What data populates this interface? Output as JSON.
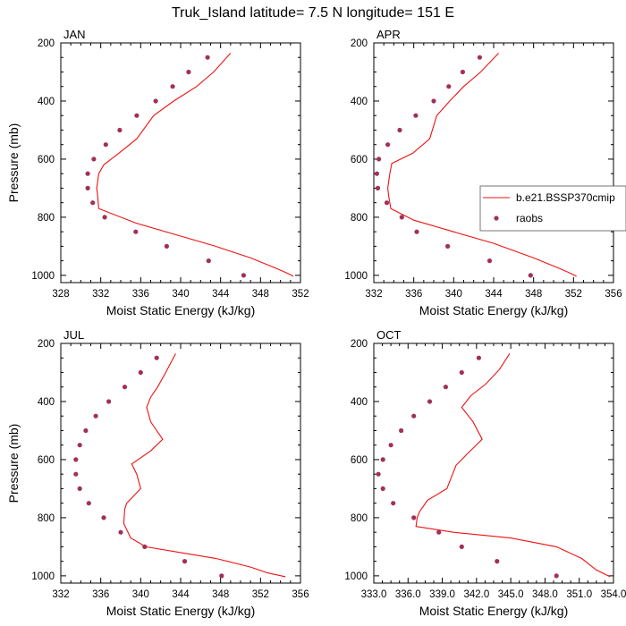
{
  "figure_title": "Truk_Island  latitude= 7.5 N longitude= 151 E",
  "legend": {
    "model_label": "b.e21.BSSP370cmip",
    "obs_label": "raobs",
    "model_color": "#ee1111",
    "obs_color": "#a0305a"
  },
  "chart_data": [
    {
      "type": "line",
      "title": "JAN",
      "xlabel": "Moist Static Energy (kJ/kg)",
      "ylabel": "Pressure (mb)",
      "xlim": [
        328,
        352
      ],
      "ylim": [
        200,
        1025
      ],
      "y_inverted": true,
      "xticks": [
        328,
        332,
        336,
        340,
        344,
        348,
        352
      ],
      "xtick_labels": [
        "328",
        "332",
        "336",
        "340",
        "344",
        "348",
        "352"
      ],
      "yticks": [
        200,
        400,
        600,
        800,
        1000
      ],
      "ytick_labels": [
        "200",
        "400",
        "600",
        "800",
        "1000"
      ],
      "series": [
        {
          "name": "b.e21.BSSP370cmip",
          "kind": "line",
          "x": [
            345.0,
            343.3,
            341.6,
            339.3,
            337.3,
            335.6,
            333.8,
            332.3,
            331.8,
            331.6,
            331.7,
            331.8,
            335.5,
            339.5,
            343.5,
            347.0,
            349.5,
            350.5,
            351.3
          ],
          "y": [
            235,
            300,
            350,
            400,
            450,
            530,
            580,
            620,
            650,
            700,
            730,
            770,
            820,
            860,
            900,
            940,
            975,
            990,
            1003
          ]
        },
        {
          "name": "raobs",
          "kind": "scatter",
          "x": [
            342.7,
            340.8,
            339.2,
            337.5,
            335.6,
            333.9,
            332.5,
            331.3,
            330.7,
            330.7,
            331.2,
            332.4,
            335.5,
            338.6,
            342.8,
            346.3
          ],
          "y": [
            250,
            300,
            350,
            400,
            450,
            500,
            550,
            600,
            650,
            700,
            750,
            800,
            850,
            900,
            950,
            1000
          ]
        }
      ]
    },
    {
      "type": "line",
      "title": "APR",
      "xlabel": "Moist Static Energy (kJ/kg)",
      "ylabel": "",
      "xlim": [
        332,
        356
      ],
      "ylim": [
        200,
        1025
      ],
      "y_inverted": true,
      "xticks": [
        332,
        336,
        340,
        344,
        348,
        352,
        356
      ],
      "xtick_labels": [
        "332",
        "336",
        "340",
        "344",
        "348",
        "352",
        "356"
      ],
      "yticks": [
        200,
        400,
        600,
        800,
        1000
      ],
      "ytick_labels": [
        "200",
        "400",
        "600",
        "800",
        "1000"
      ],
      "series": [
        {
          "name": "b.e21.BSSP370cmip",
          "kind": "line",
          "x": [
            344.5,
            342.7,
            341.0,
            339.6,
            338.3,
            337.6,
            335.9,
            333.8,
            333.6,
            333.4,
            333.5,
            333.7,
            336.0,
            340.0,
            344.0,
            348.0,
            350.5,
            351.5,
            352.3
          ],
          "y": [
            235,
            300,
            350,
            400,
            450,
            530,
            580,
            615,
            650,
            700,
            730,
            770,
            810,
            850,
            890,
            940,
            975,
            990,
            1003
          ]
        },
        {
          "name": "raobs",
          "kind": "scatter",
          "x": [
            342.6,
            340.9,
            339.5,
            338.0,
            336.2,
            334.6,
            333.4,
            332.5,
            332.3,
            332.4,
            333.3,
            334.8,
            336.3,
            339.4,
            343.6,
            347.7
          ],
          "y": [
            250,
            300,
            350,
            400,
            450,
            500,
            550,
            600,
            650,
            700,
            750,
            800,
            850,
            900,
            950,
            1000
          ]
        }
      ]
    },
    {
      "type": "line",
      "title": "JUL",
      "xlabel": "Moist Static Energy (kJ/kg)",
      "ylabel": "Pressure (mb)",
      "xlim": [
        332,
        356
      ],
      "ylim": [
        200,
        1025
      ],
      "y_inverted": true,
      "xticks": [
        332,
        336,
        340,
        344,
        348,
        352,
        356
      ],
      "xtick_labels": [
        "332",
        "336",
        "340",
        "344",
        "348",
        "352",
        "356"
      ],
      "yticks": [
        200,
        400,
        600,
        800,
        1000
      ],
      "ytick_labels": [
        "200",
        "400",
        "600",
        "800",
        "1000"
      ],
      "series": [
        {
          "name": "b.e21.BSSP370cmip",
          "kind": "line",
          "x": [
            343.5,
            342.5,
            341.7,
            341.0,
            340.6,
            341.0,
            342.2,
            341.0,
            339.1,
            339.6,
            340.0,
            338.6,
            338.4,
            338.3,
            339.0,
            340.5,
            344.0,
            347.5,
            351.0,
            352.7,
            354.5
          ],
          "y": [
            235,
            300,
            350,
            385,
            420,
            470,
            530,
            570,
            615,
            650,
            700,
            750,
            770,
            820,
            870,
            900,
            920,
            940,
            970,
            990,
            1003
          ]
        },
        {
          "name": "raobs",
          "kind": "scatter",
          "x": [
            341.6,
            340.0,
            338.4,
            336.8,
            335.5,
            334.5,
            333.9,
            333.5,
            333.5,
            333.9,
            334.8,
            336.3,
            338.0,
            340.4,
            344.4,
            348.1
          ],
          "y": [
            250,
            300,
            350,
            400,
            450,
            500,
            550,
            600,
            650,
            700,
            750,
            800,
            850,
            900,
            950,
            1000
          ]
        }
      ]
    },
    {
      "type": "line",
      "title": "OCT",
      "xlabel": "Moist Static Energy (kJ/kg)",
      "ylabel": "",
      "xlim": [
        333,
        354
      ],
      "ylim": [
        200,
        1025
      ],
      "y_inverted": true,
      "xticks": [
        333,
        336,
        339,
        342,
        345,
        348,
        351,
        354
      ],
      "xtick_labels": [
        "333.0",
        "336.0",
        "339.0",
        "342.0",
        "345.0",
        "348.0",
        "351.0",
        "354.0"
      ],
      "yticks": [
        200,
        400,
        600,
        800,
        1000
      ],
      "ytick_labels": [
        "200",
        "400",
        "600",
        "800",
        "1000"
      ],
      "series": [
        {
          "name": "b.e21.BSSP370cmip",
          "kind": "line",
          "x": [
            344.9,
            344.0,
            342.8,
            341.5,
            340.7,
            341.7,
            342.5,
            341.2,
            340.2,
            339.9,
            339.4,
            337.7,
            337.0,
            336.8,
            336.7,
            340.0,
            345.0,
            349.0,
            351.2,
            352.5,
            353.7
          ],
          "y": [
            235,
            290,
            340,
            380,
            420,
            470,
            530,
            580,
            620,
            650,
            700,
            740,
            780,
            800,
            830,
            850,
            870,
            900,
            940,
            980,
            1003
          ]
        },
        {
          "name": "raobs",
          "kind": "scatter",
          "x": [
            342.2,
            340.7,
            339.3,
            337.9,
            336.5,
            335.4,
            334.5,
            333.8,
            333.4,
            333.8,
            334.7,
            336.5,
            338.7,
            340.7,
            343.8,
            349.0
          ],
          "y": [
            250,
            300,
            350,
            400,
            450,
            500,
            550,
            600,
            650,
            700,
            750,
            800,
            850,
            900,
            950,
            1000
          ]
        }
      ]
    }
  ]
}
